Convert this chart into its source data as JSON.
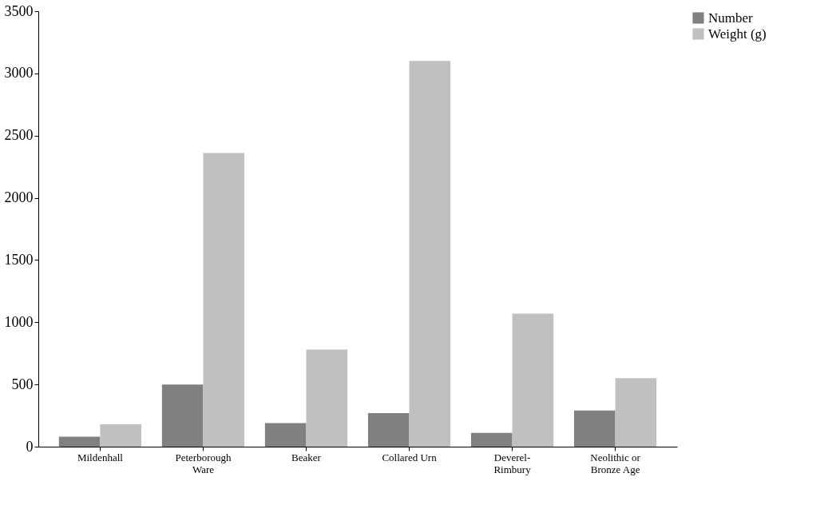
{
  "chart_data": {
    "type": "bar",
    "categories": [
      "Mildenhall",
      "Peterborough Ware",
      "Beaker",
      "Collared Urn",
      "Deverel-Rimbury",
      "Neolithic or Bronze Age"
    ],
    "series": [
      {
        "name": "Number",
        "color": "#808080",
        "values": [
          80,
          500,
          190,
          270,
          110,
          290
        ]
      },
      {
        "name": "Weight (g)",
        "color": "#c0c0c0",
        "values": [
          180,
          2360,
          780,
          3100,
          1070,
          550
        ]
      }
    ],
    "ylim": [
      0,
      3500
    ],
    "yticks": [
      0,
      500,
      1000,
      1500,
      2000,
      2500,
      3000,
      3500
    ],
    "grid": false,
    "legend": "right"
  }
}
